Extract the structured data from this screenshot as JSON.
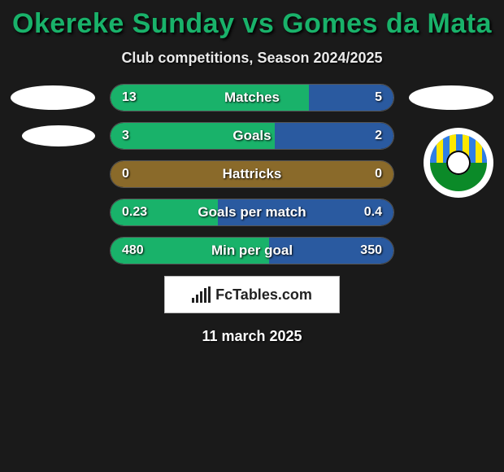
{
  "title_color": "#19b26a",
  "header": {
    "title": "Okereke Sunday vs Gomes da Mata",
    "subtitle": "Club competitions, Season 2024/2025"
  },
  "brand": "FcTables.com",
  "date": "11 march 2025",
  "colors": {
    "bar_border": "#5a5a5a",
    "fill_left": "#19b26a",
    "fill_right": "#2a5aa0",
    "neutral": "#8a6a2a",
    "text": "#ffffff",
    "ellipse": "#ffffff",
    "bg": "#1a1a1a"
  },
  "rows": [
    {
      "label": "Matches",
      "left": "13",
      "right": "5",
      "left_pct": 70,
      "right_pct": 30,
      "left_color": "#19b26a",
      "right_color": "#2a5aa0",
      "show_left_ellipse": true,
      "show_right_ellipse": true
    },
    {
      "label": "Goals",
      "left": "3",
      "right": "2",
      "left_pct": 58,
      "right_pct": 42,
      "left_color": "#19b26a",
      "right_color": "#2a5aa0",
      "show_left_ellipse2": true,
      "show_logo_right": true
    },
    {
      "label": "Hattricks",
      "left": "0",
      "right": "0",
      "left_pct": 100,
      "right_pct": 0,
      "left_color": "#8a6a2a",
      "right_color": "#8a6a2a",
      "logo_overlap": true
    },
    {
      "label": "Goals per match",
      "left": "0.23",
      "right": "0.4",
      "left_pct": 38,
      "right_pct": 62,
      "left_color": "#19b26a",
      "right_color": "#2a5aa0"
    },
    {
      "label": "Min per goal",
      "left": "480",
      "right": "350",
      "left_pct": 56,
      "right_pct": 44,
      "left_color": "#19b26a",
      "right_color": "#2a5aa0"
    }
  ]
}
